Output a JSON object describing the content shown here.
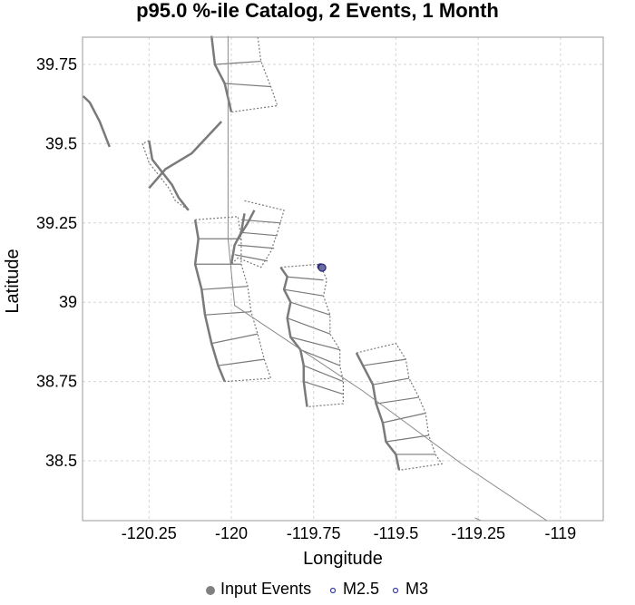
{
  "title": "p95.0 %-ile Catalog, 2 Events, 1 Month",
  "x_axis": {
    "label": "Longitude",
    "ticks": [
      {
        "value": -120.25,
        "label": "-120.25"
      },
      {
        "value": -120,
        "label": "-120"
      },
      {
        "value": -119.75,
        "label": "-119.75"
      },
      {
        "value": -119.5,
        "label": "-119.5"
      },
      {
        "value": -119.25,
        "label": "-119.25"
      },
      {
        "value": -119,
        "label": "-119"
      }
    ],
    "range": [
      -120.452,
      -118.87
    ]
  },
  "y_axis": {
    "label": "Latitude",
    "ticks": [
      {
        "value": 39.75,
        "label": "39.75"
      },
      {
        "value": 39.5,
        "label": "39.5"
      },
      {
        "value": 39.25,
        "label": "39.25"
      },
      {
        "value": 39,
        "label": "39"
      },
      {
        "value": 38.75,
        "label": "38.75"
      },
      {
        "value": 38.5,
        "label": "38.5"
      }
    ],
    "range": [
      38.311,
      39.836
    ]
  },
  "grid": true,
  "legend": {
    "placement": "bottom",
    "items": [
      {
        "label": "Input Events",
        "symbol": "filled-circle",
        "color": "#808080"
      },
      {
        "label": "M2.5",
        "symbol": "open-circle",
        "color": "#3a3aa8"
      },
      {
        "label": "M3",
        "symbol": "open-circle",
        "color": "#3a3aa8"
      }
    ]
  },
  "colors": {
    "fault": "#7a7a7a",
    "event_fill": "#6e6e9e",
    "event_stroke": "#2a2a7a",
    "grid": "#d6d6d6"
  },
  "chart_data": {
    "type": "scatter",
    "events": [
      {
        "lon": -119.729,
        "lat": 39.112,
        "mag": 2.5
      },
      {
        "lon": -119.724,
        "lat": 39.109,
        "mag": 3
      }
    ],
    "faults": [
      {
        "kind": "trace",
        "points": [
          [
            -120.45,
            39.65
          ],
          [
            -120.43,
            39.63
          ],
          [
            -120.4,
            39.57
          ],
          [
            -120.37,
            39.49
          ]
        ]
      },
      {
        "kind": "trace",
        "points": [
          [
            -120.25,
            39.36
          ],
          [
            -120.2,
            39.42
          ],
          [
            -120.12,
            39.47
          ],
          [
            -120.03,
            39.57
          ]
        ]
      },
      {
        "kind": "trace",
        "points": [
          [
            -120.06,
            39.84
          ],
          [
            -120.05,
            39.75
          ],
          [
            -120.02,
            39.69
          ],
          [
            -120.0,
            39.6
          ]
        ]
      },
      {
        "kind": "outline",
        "points": [
          [
            -120.06,
            39.84
          ],
          [
            -120.05,
            39.75
          ],
          [
            -120.02,
            39.69
          ],
          [
            -120.0,
            39.6
          ],
          [
            -119.86,
            39.62
          ],
          [
            -119.88,
            39.68
          ],
          [
            -119.91,
            39.76
          ],
          [
            -119.92,
            39.84
          ]
        ]
      },
      {
        "kind": "rungs",
        "pairs": [
          [
            [
              -120.05,
              39.75
            ],
            [
              -119.91,
              39.76
            ]
          ],
          [
            [
              -120.02,
              39.69
            ],
            [
              -119.88,
              39.68
            ]
          ]
        ]
      },
      {
        "kind": "trace",
        "points": [
          [
            -120.25,
            39.51
          ],
          [
            -120.24,
            39.45
          ],
          [
            -120.21,
            39.41
          ],
          [
            -120.18,
            39.37
          ],
          [
            -120.16,
            39.33
          ],
          [
            -120.13,
            39.29
          ]
        ]
      },
      {
        "kind": "outline",
        "points": [
          [
            -120.25,
            39.51
          ],
          [
            -120.27,
            39.5
          ],
          [
            -120.25,
            39.44
          ],
          [
            -120.22,
            39.4
          ],
          [
            -120.19,
            39.36
          ],
          [
            -120.17,
            39.32
          ],
          [
            -120.13,
            39.29
          ]
        ]
      },
      {
        "kind": "trace",
        "points": [
          [
            -120.11,
            39.26
          ],
          [
            -120.1,
            39.2
          ],
          [
            -120.11,
            39.12
          ],
          [
            -120.09,
            39.04
          ],
          [
            -120.08,
            38.96
          ],
          [
            -120.06,
            38.87
          ],
          [
            -120.04,
            38.8
          ],
          [
            -120.02,
            38.75
          ]
        ]
      },
      {
        "kind": "outline",
        "points": [
          [
            -120.11,
            39.26
          ],
          [
            -119.98,
            39.27
          ],
          [
            -119.97,
            39.2
          ],
          [
            -119.97,
            39.12
          ],
          [
            -119.95,
            39.05
          ],
          [
            -119.94,
            38.97
          ],
          [
            -119.92,
            38.9
          ],
          [
            -119.9,
            38.82
          ],
          [
            -119.88,
            38.76
          ],
          [
            -120.02,
            38.75
          ]
        ]
      },
      {
        "kind": "rungs",
        "pairs": [
          [
            [
              -120.1,
              39.2
            ],
            [
              -119.97,
              39.2
            ]
          ],
          [
            [
              -120.11,
              39.12
            ],
            [
              -119.97,
              39.12
            ]
          ],
          [
            [
              -120.09,
              39.04
            ],
            [
              -119.95,
              39.05
            ]
          ],
          [
            [
              -120.08,
              38.96
            ],
            [
              -119.94,
              38.97
            ]
          ],
          [
            [
              -120.06,
              38.87
            ],
            [
              -119.92,
              38.9
            ]
          ],
          [
            [
              -120.04,
              38.8
            ],
            [
              -119.9,
              38.82
            ]
          ]
        ]
      },
      {
        "kind": "trace",
        "points": [
          [
            -119.96,
            39.28
          ],
          [
            -119.97,
            39.22
          ],
          [
            -119.99,
            39.18
          ],
          [
            -120.0,
            39.12
          ]
        ]
      },
      {
        "kind": "trace",
        "points": [
          [
            -119.93,
            39.29
          ],
          [
            -119.95,
            39.25
          ],
          [
            -119.98,
            39.2
          ]
        ]
      },
      {
        "kind": "outline",
        "points": [
          [
            -119.96,
            39.32
          ],
          [
            -119.84,
            39.29
          ],
          [
            -119.86,
            39.22
          ],
          [
            -119.88,
            39.16
          ],
          [
            -119.91,
            39.11
          ],
          [
            -119.98,
            39.14
          ],
          [
            -120.0,
            39.12
          ]
        ]
      },
      {
        "kind": "rungs",
        "pairs": [
          [
            [
              -119.97,
              39.26
            ],
            [
              -119.85,
              39.25
            ]
          ],
          [
            [
              -119.97,
              39.22
            ],
            [
              -119.86,
              39.21
            ]
          ],
          [
            [
              -119.98,
              39.18
            ],
            [
              -119.87,
              39.17
            ]
          ],
          [
            [
              -119.99,
              39.15
            ],
            [
              -119.89,
              39.13
            ]
          ]
        ]
      },
      {
        "kind": "trace",
        "points": [
          [
            -119.85,
            39.11
          ],
          [
            -119.83,
            39.08
          ],
          [
            -119.84,
            39.04
          ],
          [
            -119.82,
            39.0
          ],
          [
            -119.83,
            38.95
          ],
          [
            -119.82,
            38.89
          ],
          [
            -119.79,
            38.85
          ],
          [
            -119.78,
            38.8
          ],
          [
            -119.78,
            38.75
          ],
          [
            -119.77,
            38.67
          ]
        ]
      },
      {
        "kind": "outline",
        "points": [
          [
            -119.85,
            39.11
          ],
          [
            -119.73,
            39.12
          ],
          [
            -119.71,
            39.07
          ],
          [
            -119.72,
            39.02
          ],
          [
            -119.7,
            38.96
          ],
          [
            -119.7,
            38.9
          ],
          [
            -119.67,
            38.85
          ],
          [
            -119.67,
            38.8
          ],
          [
            -119.66,
            38.75
          ],
          [
            -119.66,
            38.68
          ],
          [
            -119.77,
            38.67
          ]
        ]
      },
      {
        "kind": "rungs",
        "pairs": [
          [
            [
              -119.83,
              39.08
            ],
            [
              -119.72,
              39.07
            ]
          ],
          [
            [
              -119.84,
              39.04
            ],
            [
              -119.72,
              39.02
            ]
          ],
          [
            [
              -119.82,
              39.0
            ],
            [
              -119.7,
              38.96
            ]
          ],
          [
            [
              -119.83,
              38.95
            ],
            [
              -119.7,
              38.9
            ]
          ],
          [
            [
              -119.82,
              38.89
            ],
            [
              -119.67,
              38.85
            ]
          ],
          [
            [
              -119.79,
              38.85
            ],
            [
              -119.67,
              38.8
            ]
          ],
          [
            [
              -119.78,
              38.8
            ],
            [
              -119.66,
              38.75
            ]
          ],
          [
            [
              -119.78,
              38.75
            ],
            [
              -119.66,
              38.71
            ]
          ]
        ]
      },
      {
        "kind": "trace",
        "points": [
          [
            -119.62,
            38.84
          ],
          [
            -119.6,
            38.8
          ],
          [
            -119.57,
            38.74
          ],
          [
            -119.56,
            38.68
          ],
          [
            -119.54,
            38.62
          ],
          [
            -119.53,
            38.56
          ],
          [
            -119.5,
            38.52
          ],
          [
            -119.49,
            38.47
          ]
        ]
      },
      {
        "kind": "outline",
        "points": [
          [
            -119.62,
            38.84
          ],
          [
            -119.5,
            38.87
          ],
          [
            -119.47,
            38.82
          ],
          [
            -119.46,
            38.76
          ],
          [
            -119.43,
            38.7
          ],
          [
            -119.41,
            38.65
          ],
          [
            -119.4,
            38.58
          ],
          [
            -119.38,
            38.52
          ],
          [
            -119.36,
            38.49
          ],
          [
            -119.49,
            38.47
          ]
        ]
      },
      {
        "kind": "rungs",
        "pairs": [
          [
            [
              -119.6,
              38.8
            ],
            [
              -119.47,
              38.82
            ]
          ],
          [
            [
              -119.57,
              38.74
            ],
            [
              -119.46,
              38.76
            ]
          ],
          [
            [
              -119.56,
              38.68
            ],
            [
              -119.43,
              38.7
            ]
          ],
          [
            [
              -119.54,
              38.62
            ],
            [
              -119.41,
              38.65
            ]
          ],
          [
            [
              -119.53,
              38.56
            ],
            [
              -119.4,
              38.58
            ]
          ],
          [
            [
              -119.5,
              38.52
            ],
            [
              -119.38,
              38.52
            ]
          ]
        ]
      },
      {
        "kind": "thin",
        "points": [
          [
            -120.01,
            39.84
          ],
          [
            -120.01,
            39.2
          ],
          [
            -119.99,
            38.99
          ],
          [
            -119.6,
            38.72
          ],
          [
            -119.3,
            38.49
          ],
          [
            -119.04,
            38.31
          ]
        ]
      },
      {
        "kind": "thin",
        "points": [
          [
            -119.26,
            38.32
          ],
          [
            -119.24,
            38.31
          ]
        ]
      }
    ]
  }
}
